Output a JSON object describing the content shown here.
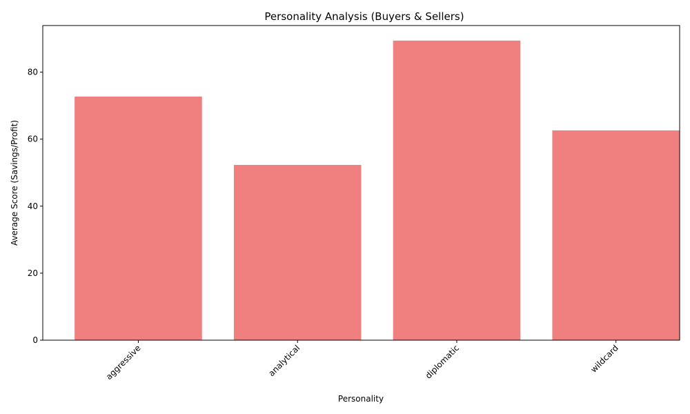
{
  "chart_data": {
    "type": "bar",
    "title": "Personality Analysis (Buyers & Sellers)",
    "xlabel": "Personality",
    "ylabel": "Average Score (Savings/Profit)",
    "categories": [
      "aggressive",
      "analytical",
      "diplomatic",
      "wildcard"
    ],
    "values": [
      72.7,
      52.3,
      89.4,
      62.6
    ],
    "ylim": [
      0,
      93.9
    ],
    "yticks": [
      0,
      20,
      40,
      60,
      80
    ],
    "bar_color": "#f08080",
    "grid": false,
    "xtick_rotation": 45
  }
}
